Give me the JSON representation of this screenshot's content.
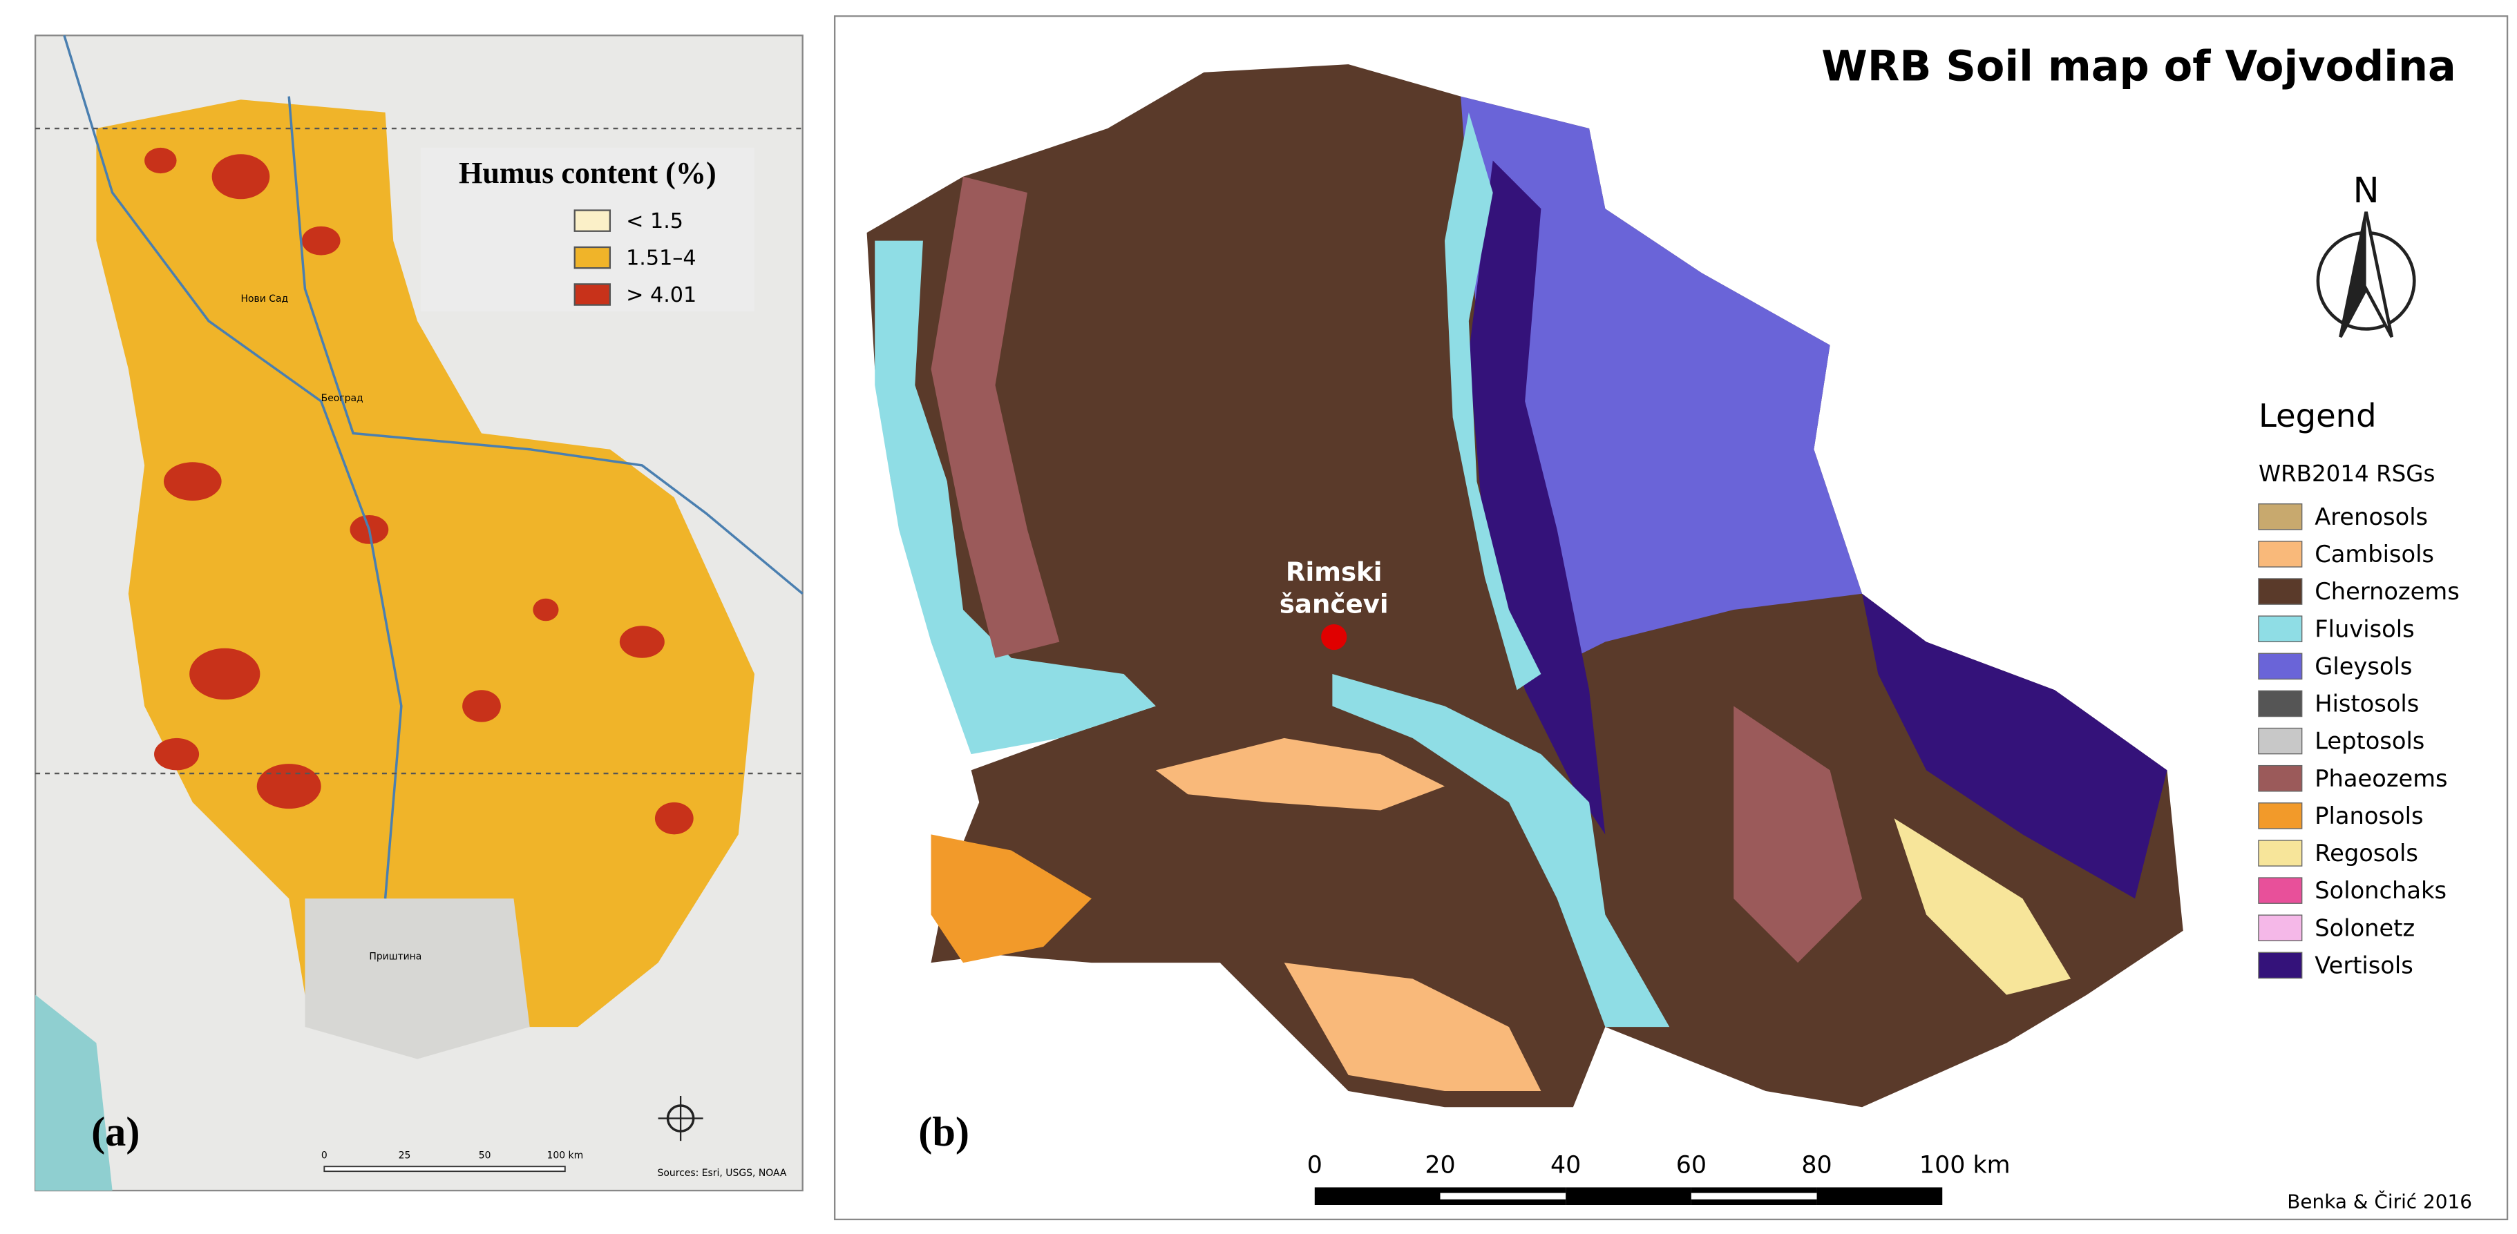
{
  "panel_a": {
    "label": "(a)",
    "legend_title": "Humus content (%)",
    "legend": [
      {
        "label": "< 1.5",
        "color": "#fbf0c8"
      },
      {
        "label": "1.51–4",
        "color": "#f0b429"
      },
      {
        "label": "> 4.01",
        "color": "#c8321a"
      }
    ],
    "places": [
      "Нови Сад",
      "Београд",
      "Приштина"
    ],
    "sources": "Sources: Esri, USGS, NOAA",
    "scale": [
      "0",
      "25",
      "50",
      "100 km"
    ]
  },
  "panel_b": {
    "label": "(b)",
    "title": "WRB Soil map of Vojvodina",
    "north": "N",
    "legend_title": "Legend",
    "legend_subtitle": "WRB2014 RSGs",
    "legend": [
      {
        "label": "Arenosols",
        "color": "#c8a96e"
      },
      {
        "label": "Cambisols",
        "color": "#f9b97a"
      },
      {
        "label": "Chernozems",
        "color": "#5a3a2a"
      },
      {
        "label": "Fluvisols",
        "color": "#8fdde5"
      },
      {
        "label": "Gleysols",
        "color": "#6a64d8"
      },
      {
        "label": "Histosols",
        "color": "#555555"
      },
      {
        "label": "Leptosols",
        "color": "#c8c8c8"
      },
      {
        "label": "Phaeozems",
        "color": "#9b5a5a"
      },
      {
        "label": "Planosols",
        "color": "#f29a2a"
      },
      {
        "label": "Regosols",
        "color": "#f7e59a"
      },
      {
        "label": "Solonchaks",
        "color": "#e8509a"
      },
      {
        "label": "Solonetz",
        "color": "#f5b8e8"
      },
      {
        "label": "Vertisols",
        "color": "#34127a"
      }
    ],
    "site": [
      "Rimski",
      "šančevi"
    ],
    "scale": [
      "0",
      "20",
      "40",
      "60",
      "80",
      "100 km"
    ],
    "credit": "Benka & Čirić 2016"
  }
}
